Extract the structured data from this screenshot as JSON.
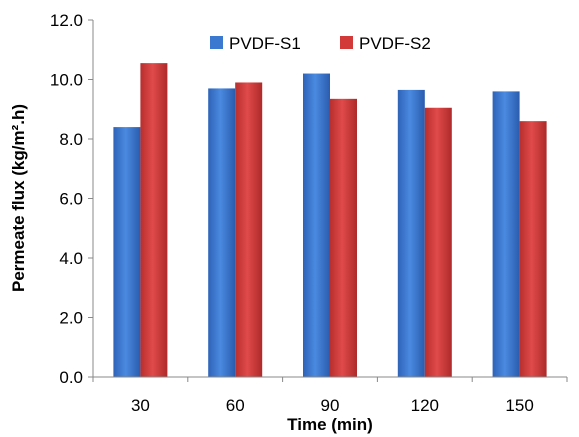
{
  "chart_data": {
    "type": "bar",
    "title": "",
    "xlabel": "Time (min)",
    "ylabel": "Permeate flux (kg/m².h)",
    "categories": [
      "30",
      "60",
      "90",
      "120",
      "150"
    ],
    "series": [
      {
        "name": "PVDF-S1",
        "color": "#3B78D0",
        "values": [
          8.4,
          9.7,
          10.2,
          9.65,
          9.6
        ]
      },
      {
        "name": "PVDF-S2",
        "color": "#D23A3A",
        "values": [
          10.55,
          9.9,
          9.35,
          9.05,
          8.6
        ]
      }
    ],
    "ylim": [
      0,
      12
    ],
    "yticks": [
      "0.0",
      "2.0",
      "4.0",
      "6.0",
      "8.0",
      "10.0",
      "12.0"
    ],
    "grid": false,
    "legend": "top-center"
  }
}
